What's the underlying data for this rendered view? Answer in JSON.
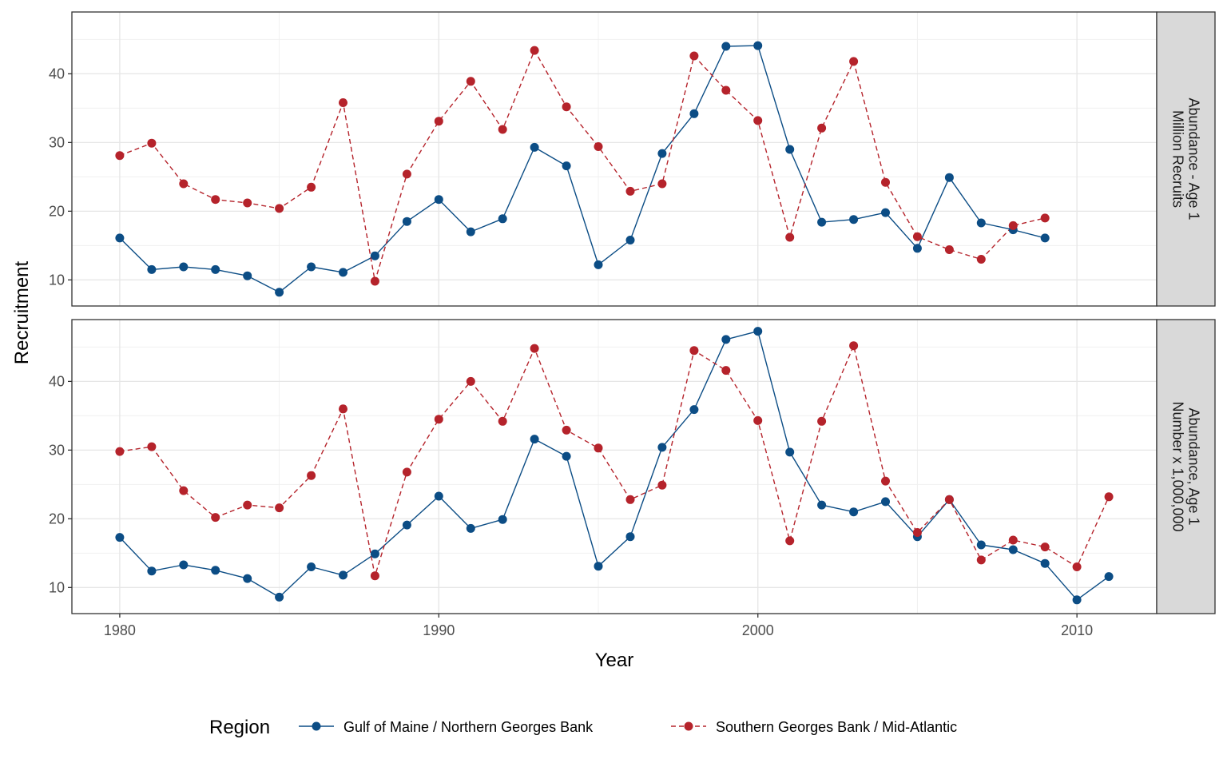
{
  "chart_data": {
    "type": "line",
    "xlabel": "Year",
    "ylabel": "Recruitment",
    "xlim": [
      1978.5,
      2012.5
    ],
    "x_ticks": [
      1980,
      1990,
      2000,
      2010
    ],
    "y_ticks": [
      10,
      20,
      30,
      40
    ],
    "legend": {
      "title": "Region",
      "placement": "bottom",
      "entries": [
        "Gulf of Maine / Northern Georges Bank",
        "Southern Georges Bank / Mid-Atlantic"
      ]
    },
    "colors": {
      "Gulf of Maine / Northern Georges Bank": "#0c4d85",
      "Southern Georges Bank / Mid-Atlantic": "#b5232b"
    },
    "grid": true,
    "panels": [
      {
        "strip": [
          "Abundance - Age 1",
          "Million Recruits"
        ],
        "ylim": [
          6.2,
          49.0
        ],
        "series": [
          {
            "name": "Gulf of Maine / Northern Georges Bank",
            "linestyle": "solid",
            "x": [
              1980,
              1981,
              1982,
              1983,
              1984,
              1985,
              1986,
              1987,
              1988,
              1989,
              1990,
              1991,
              1992,
              1993,
              1994,
              1995,
              1996,
              1997,
              1998,
              1999,
              2000,
              2001,
              2002,
              2003,
              2004,
              2005,
              2006,
              2007,
              2008,
              2009
            ],
            "y": [
              16.1,
              11.5,
              11.9,
              11.5,
              10.6,
              8.2,
              11.9,
              11.1,
              13.5,
              18.5,
              21.7,
              17.0,
              18.9,
              29.3,
              26.6,
              12.2,
              15.8,
              28.4,
              34.2,
              44.0,
              44.1,
              29.0,
              18.4,
              18.8,
              19.8,
              14.6,
              24.9,
              18.3,
              17.3,
              16.1
            ]
          },
          {
            "name": "Southern Georges Bank / Mid-Atlantic",
            "linestyle": "dashed",
            "x": [
              1980,
              1981,
              1982,
              1983,
              1984,
              1985,
              1986,
              1987,
              1988,
              1989,
              1990,
              1991,
              1992,
              1993,
              1994,
              1995,
              1996,
              1997,
              1998,
              1999,
              2000,
              2001,
              2002,
              2003,
              2004,
              2005,
              2006,
              2007,
              2008,
              2009
            ],
            "y": [
              28.1,
              29.9,
              24.0,
              21.7,
              21.2,
              20.4,
              23.5,
              35.8,
              9.8,
              25.4,
              33.1,
              38.9,
              31.9,
              43.4,
              35.2,
              29.4,
              22.9,
              24.0,
              42.6,
              37.6,
              33.2,
              16.2,
              32.1,
              41.8,
              24.2,
              16.3,
              14.4,
              13.0,
              17.9,
              19.0
            ]
          }
        ]
      },
      {
        "strip": [
          "Abundance, Age 1",
          "Number x 1,000,000"
        ],
        "ylim": [
          6.2,
          49.0
        ],
        "series": [
          {
            "name": "Gulf of Maine / Northern Georges Bank",
            "linestyle": "solid",
            "x": [
              1980,
              1981,
              1982,
              1983,
              1984,
              1985,
              1986,
              1987,
              1988,
              1989,
              1990,
              1991,
              1992,
              1993,
              1994,
              1995,
              1996,
              1997,
              1998,
              1999,
              2000,
              2001,
              2002,
              2003,
              2004,
              2005,
              2006,
              2007,
              2008,
              2009,
              2010,
              2011
            ],
            "y": [
              17.3,
              12.4,
              13.3,
              12.5,
              11.3,
              8.6,
              13.0,
              11.8,
              14.9,
              19.1,
              23.3,
              18.6,
              19.9,
              31.6,
              29.1,
              13.1,
              17.4,
              30.4,
              35.9,
              46.1,
              47.3,
              29.7,
              22.0,
              21.0,
              22.5,
              17.4,
              22.8,
              16.2,
              15.5,
              13.5,
              8.2,
              11.6
            ]
          },
          {
            "name": "Southern Georges Bank / Mid-Atlantic",
            "linestyle": "dashed",
            "x": [
              1980,
              1981,
              1982,
              1983,
              1984,
              1985,
              1986,
              1987,
              1988,
              1989,
              1990,
              1991,
              1992,
              1993,
              1994,
              1995,
              1996,
              1997,
              1998,
              1999,
              2000,
              2001,
              2002,
              2003,
              2004,
              2005,
              2006,
              2007,
              2008,
              2009,
              2010,
              2011
            ],
            "y": [
              29.8,
              30.5,
              24.1,
              20.2,
              22.0,
              21.6,
              26.3,
              36.0,
              11.7,
              26.8,
              34.5,
              40.0,
              34.2,
              44.8,
              32.9,
              30.3,
              22.8,
              24.9,
              44.5,
              41.6,
              34.3,
              16.8,
              34.2,
              45.2,
              25.5,
              18.0,
              22.8,
              14.0,
              16.9,
              15.9,
              13.0,
              23.2
            ]
          }
        ]
      }
    ]
  }
}
